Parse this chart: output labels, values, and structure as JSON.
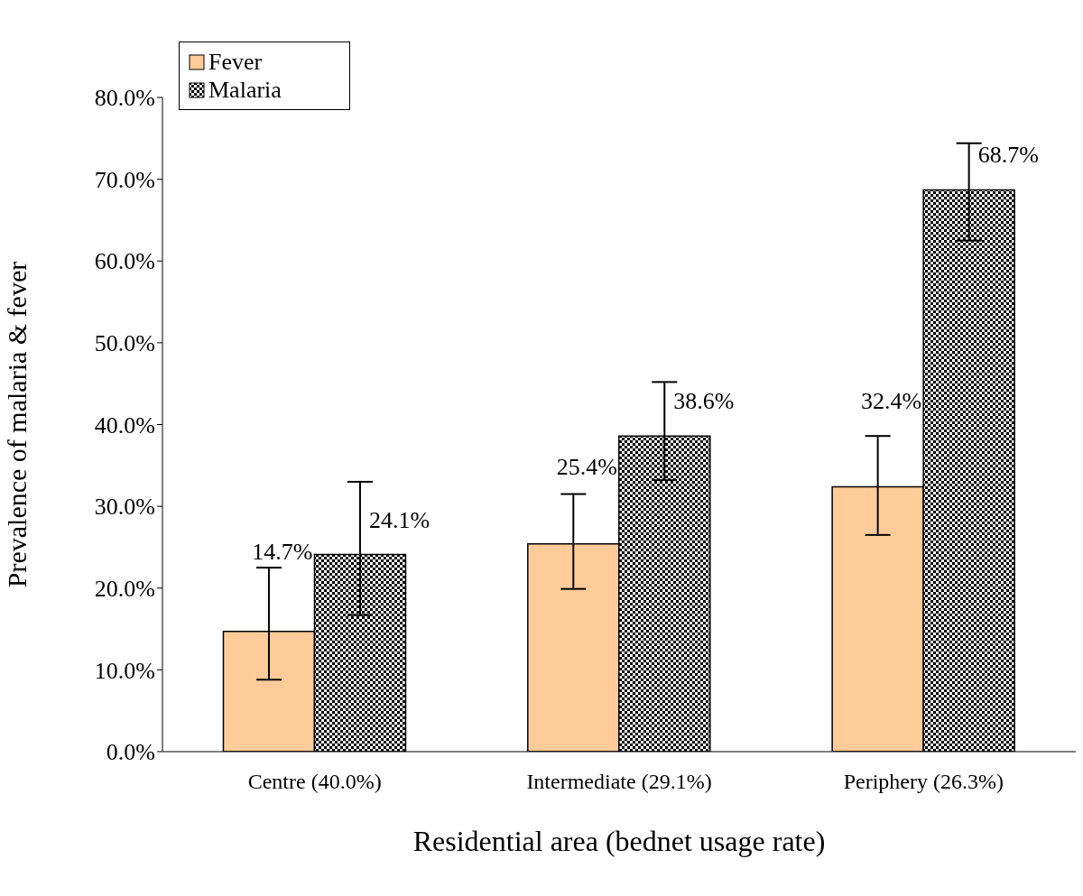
{
  "chart_data": {
    "type": "bar",
    "xlabel": "Residential area (bednet usage rate)",
    "ylabel": "Prevalence of malaria & fever",
    "categories": [
      "Centre (40.0%)",
      "Intermediate (29.1%)",
      "Periphery (26.3%)"
    ],
    "series": [
      {
        "name": "Fever",
        "color": "#ffcc99",
        "values": [
          14.7,
          25.4,
          32.4
        ],
        "errors": [
          [
            8.8,
            22.5
          ],
          [
            19.9,
            31.5
          ],
          [
            26.5,
            38.6
          ]
        ],
        "value_labels": [
          "14.7%",
          "25.4%",
          "32.4%"
        ]
      },
      {
        "name": "Malaria",
        "color": "#000000",
        "values": [
          24.1,
          38.6,
          68.7
        ],
        "errors": [
          [
            16.7,
            33.0
          ],
          [
            33.2,
            45.2
          ],
          [
            62.5,
            74.4
          ]
        ],
        "value_labels": [
          "24.1%",
          "38.6%",
          "68.7%"
        ]
      }
    ],
    "ylim": [
      0,
      80
    ],
    "yticks": [
      {
        "value": 0,
        "label": "0.0%"
      },
      {
        "value": 10,
        "label": "10.0%"
      },
      {
        "value": 20,
        "label": "20.0%"
      },
      {
        "value": 30,
        "label": "30.0%"
      },
      {
        "value": 40,
        "label": "40.0%"
      },
      {
        "value": 50,
        "label": "50.0%"
      },
      {
        "value": 60,
        "label": "60.0%"
      },
      {
        "value": 70,
        "label": "70.0%"
      },
      {
        "value": 80,
        "label": "80.0%"
      }
    ],
    "grid": false,
    "legend": "top left"
  }
}
